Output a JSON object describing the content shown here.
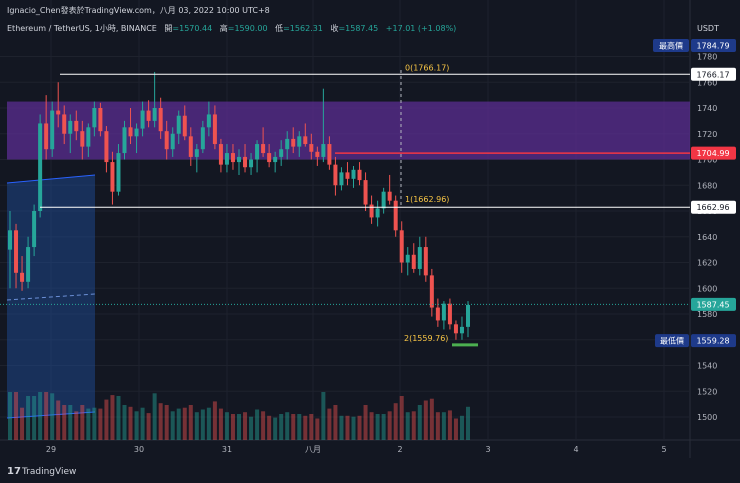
{
  "header": {
    "publisher": "Ignacio_Chen發表於TradingView.com，八月 03, 2022 10:00 UTC+8",
    "symbol": "Ethereum / TetherUS, 1小時, BINANCE",
    "open_label": "開",
    "open_value": "=1570.44",
    "high_label": "高",
    "high_value": "=1590.00",
    "low_label": "低",
    "low_value": "=1562.31",
    "close_label": "收",
    "close_value": "=1587.45",
    "change": "+17.01 (+1.08%)"
  },
  "currency": "USDT",
  "brand": "TradingView",
  "colors": {
    "background": "#131722",
    "up": "#26a69a",
    "down": "#ef5350",
    "zone": "#5b2e91",
    "range_box": "#1e4fa0",
    "annotation": "#f7c545",
    "red_line": "#f23645",
    "green_marker": "#4caf50"
  },
  "labels": {
    "high_tag": "最高價",
    "high_price": "1784.79",
    "level_1766": "1766.17",
    "level_1705": "1704.99",
    "level_1663": "1662.96",
    "last_price": "1587.45",
    "low_tag": "最低價",
    "low_price": "1559.28",
    "zz_0": "0(1766.17)",
    "zz_1": "1(1662.96)",
    "zz_2": "2(1559.76)"
  },
  "chart_data": {
    "type": "candlestick",
    "y_ticks": [
      1500,
      1520,
      1540,
      1560,
      1580,
      1600,
      1620,
      1640,
      1660,
      1680,
      1700,
      1720,
      1740,
      1760,
      1780
    ],
    "x_ticks": [
      "29",
      "30",
      "31",
      "八月",
      "2",
      "3",
      "4",
      "5"
    ],
    "ylim": [
      1488,
      1795
    ],
    "horizontal_levels": [
      1766.17,
      1704.99,
      1662.96
    ],
    "zone": [
      1700,
      1745
    ],
    "last_price": 1587.45,
    "annotations": [
      {
        "label": "0(1766.17)",
        "value": 1766.17
      },
      {
        "label": "1(1662.96)",
        "value": 1662.96
      },
      {
        "label": "2(1559.76)",
        "value": 1559.76
      }
    ],
    "ohlc_approx": [
      [
        1630,
        1660,
        1600,
        1645
      ],
      [
        1645,
        1650,
        1600,
        1612
      ],
      [
        1612,
        1625,
        1598,
        1605
      ],
      [
        1605,
        1640,
        1600,
        1632
      ],
      [
        1632,
        1665,
        1625,
        1660
      ],
      [
        1660,
        1735,
        1655,
        1728
      ],
      [
        1728,
        1750,
        1700,
        1708
      ],
      [
        1708,
        1745,
        1702,
        1738
      ],
      [
        1738,
        1760,
        1725,
        1735
      ],
      [
        1735,
        1742,
        1712,
        1720
      ],
      [
        1720,
        1735,
        1705,
        1730
      ],
      [
        1730,
        1738,
        1715,
        1722
      ],
      [
        1722,
        1730,
        1700,
        1710
      ],
      [
        1710,
        1728,
        1702,
        1725
      ],
      [
        1725,
        1745,
        1718,
        1740
      ],
      [
        1740,
        1744,
        1718,
        1722
      ],
      [
        1722,
        1726,
        1690,
        1698
      ],
      [
        1698,
        1706,
        1665,
        1675
      ],
      [
        1675,
        1712,
        1672,
        1705
      ],
      [
        1705,
        1730,
        1700,
        1725
      ],
      [
        1725,
        1740,
        1712,
        1718
      ],
      [
        1718,
        1728,
        1705,
        1724
      ],
      [
        1724,
        1745,
        1718,
        1738
      ],
      [
        1738,
        1746,
        1725,
        1730
      ],
      [
        1730,
        1768,
        1725,
        1740
      ],
      [
        1740,
        1748,
        1716,
        1722
      ],
      [
        1722,
        1730,
        1700,
        1708
      ],
      [
        1708,
        1725,
        1702,
        1720
      ],
      [
        1720,
        1738,
        1712,
        1734
      ],
      [
        1734,
        1742,
        1715,
        1718
      ],
      [
        1718,
        1725,
        1695,
        1702
      ],
      [
        1702,
        1712,
        1690,
        1708
      ],
      [
        1708,
        1730,
        1705,
        1725
      ],
      [
        1725,
        1745,
        1718,
        1735
      ],
      [
        1735,
        1742,
        1708,
        1712
      ],
      [
        1712,
        1716,
        1690,
        1696
      ],
      [
        1696,
        1712,
        1690,
        1705
      ],
      [
        1705,
        1712,
        1692,
        1698
      ],
      [
        1698,
        1708,
        1688,
        1702
      ],
      [
        1702,
        1712,
        1690,
        1694
      ],
      [
        1694,
        1705,
        1688,
        1700
      ],
      [
        1700,
        1715,
        1690,
        1712
      ],
      [
        1712,
        1725,
        1702,
        1705
      ],
      [
        1705,
        1712,
        1694,
        1698
      ],
      [
        1698,
        1706,
        1690,
        1702
      ],
      [
        1702,
        1715,
        1695,
        1708
      ],
      [
        1708,
        1722,
        1700,
        1716
      ],
      [
        1716,
        1725,
        1705,
        1710
      ],
      [
        1710,
        1722,
        1702,
        1718
      ],
      [
        1718,
        1728,
        1710,
        1712
      ],
      [
        1712,
        1720,
        1700,
        1706
      ],
      [
        1706,
        1710,
        1695,
        1702
      ],
      [
        1702,
        1755,
        1698,
        1712
      ],
      [
        1712,
        1718,
        1692,
        1696
      ],
      [
        1696,
        1702,
        1672,
        1680
      ],
      [
        1680,
        1694,
        1676,
        1690
      ],
      [
        1690,
        1698,
        1680,
        1685
      ],
      [
        1685,
        1695,
        1678,
        1692
      ],
      [
        1692,
        1698,
        1680,
        1684
      ],
      [
        1684,
        1690,
        1660,
        1665
      ],
      [
        1665,
        1672,
        1650,
        1655
      ],
      [
        1655,
        1668,
        1648,
        1662
      ],
      [
        1662,
        1678,
        1658,
        1675
      ],
      [
        1675,
        1688,
        1665,
        1668
      ],
      [
        1668,
        1672,
        1640,
        1645
      ],
      [
        1645,
        1652,
        1612,
        1620
      ],
      [
        1620,
        1632,
        1610,
        1626
      ],
      [
        1626,
        1635,
        1612,
        1615
      ],
      [
        1615,
        1640,
        1610,
        1632
      ],
      [
        1632,
        1640,
        1605,
        1610
      ],
      [
        1610,
        1615,
        1578,
        1585
      ],
      [
        1585,
        1592,
        1570,
        1575
      ],
      [
        1575,
        1590,
        1568,
        1588
      ],
      [
        1588,
        1592,
        1568,
        1572
      ],
      [
        1572,
        1575,
        1560,
        1565
      ],
      [
        1565,
        1578,
        1560,
        1570
      ],
      [
        1570,
        1590,
        1562,
        1587
      ]
    ]
  }
}
